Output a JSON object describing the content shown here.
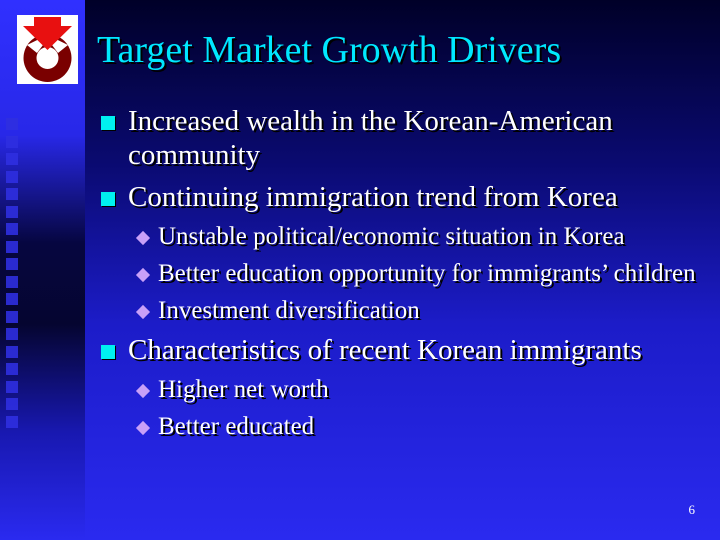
{
  "slide": {
    "title": "Target Market Growth Drivers",
    "page_number": "6",
    "colors": {
      "title": "#00e8ff",
      "bullet": "#00f0f0",
      "sub_bullet": "#c8a0f8",
      "text": "#ffffff"
    },
    "bullets": [
      {
        "text": "Increased wealth in the Korean-American community",
        "subs": []
      },
      {
        "text": "Continuing immigration trend from Korea",
        "subs": [
          "Unstable political/economic situation in Korea",
          "Better education opportunity for immigrants’ children",
          "Investment diversification"
        ]
      },
      {
        "text": "Characteristics of recent Korean immigrants",
        "subs": [
          "Higher net worth",
          "Better educated"
        ]
      }
    ]
  }
}
